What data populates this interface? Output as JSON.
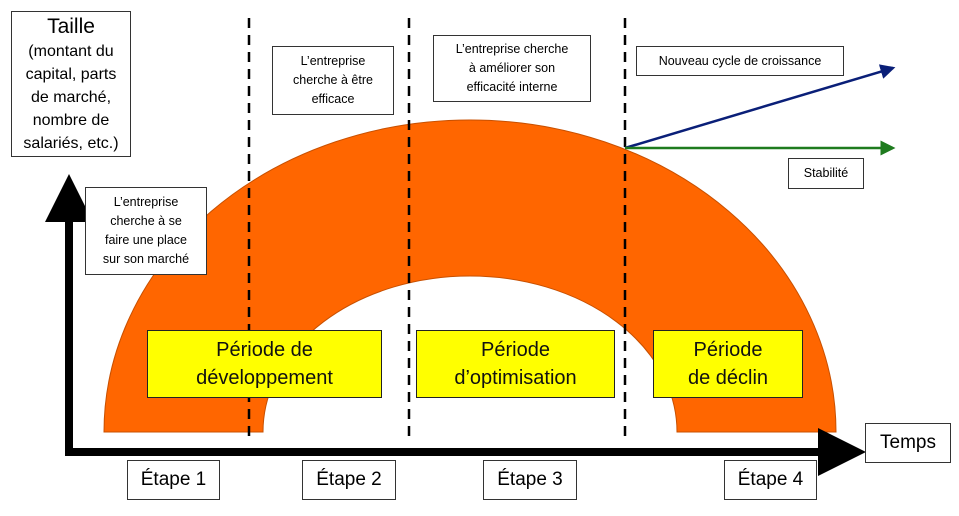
{
  "y_axis": {
    "title": "Taille",
    "subtitle": "(montant du\ncapital, parts\nde marché,\nnombre de\nsalariés, etc.)"
  },
  "x_axis": {
    "label": "Temps"
  },
  "periods": [
    {
      "label": "Période de\ndéveloppement"
    },
    {
      "label": "Période\nd’optimisation"
    },
    {
      "label": "Période\nde déclin"
    }
  ],
  "steps": [
    {
      "label": "Étape 1"
    },
    {
      "label": "Étape 2"
    },
    {
      "label": "Étape 3"
    },
    {
      "label": "Étape 4"
    }
  ],
  "notes": {
    "step1": "L’entreprise\ncherche à se\nfaire une place\nsur son marché",
    "step2": "L’entreprise\ncherche à être\nefficace",
    "step3": "L’entreprise cherche\nà améliorer son\nefficacité interne",
    "growth": "Nouveau cycle de croissance",
    "stability": "Stabilité"
  },
  "colors": {
    "arch": "#ff6600",
    "period_box": "#ffff00",
    "growth_arrow": "#0a1f78",
    "stability_arrow": "#1e7b1e",
    "axis": "#000000"
  }
}
